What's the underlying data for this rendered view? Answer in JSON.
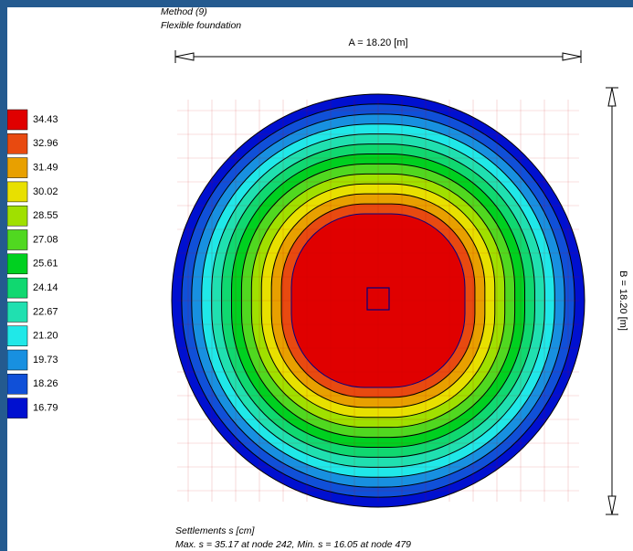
{
  "header": {
    "method": "Method (9)",
    "foundation": "Flexible foundation"
  },
  "dimensions": {
    "a": "A = 18.20 [m]",
    "b": "B = 18.20 [m]"
  },
  "legend": [
    {
      "label": "34.43",
      "color": "#e00000"
    },
    {
      "label": "32.96",
      "color": "#e84a10"
    },
    {
      "label": "31.49",
      "color": "#e8a000"
    },
    {
      "label": "30.02",
      "color": "#e8e000"
    },
    {
      "label": "28.55",
      "color": "#a0e000"
    },
    {
      "label": "27.08",
      "color": "#50d820"
    },
    {
      "label": "25.61",
      "color": "#00d020"
    },
    {
      "label": "24.14",
      "color": "#10d870"
    },
    {
      "label": "22.67",
      "color": "#20e0b0"
    },
    {
      "label": "21.20",
      "color": "#20e8e8"
    },
    {
      "label": "19.73",
      "color": "#1890e0"
    },
    {
      "label": "18.26",
      "color": "#1050d8"
    },
    {
      "label": "16.79",
      "color": "#0010d0"
    }
  ],
  "footer": {
    "title": "Settlements s [cm]",
    "summary": "Max.  s = 35.17 at node 242, Min.  s = 16.05 at node 479"
  }
}
